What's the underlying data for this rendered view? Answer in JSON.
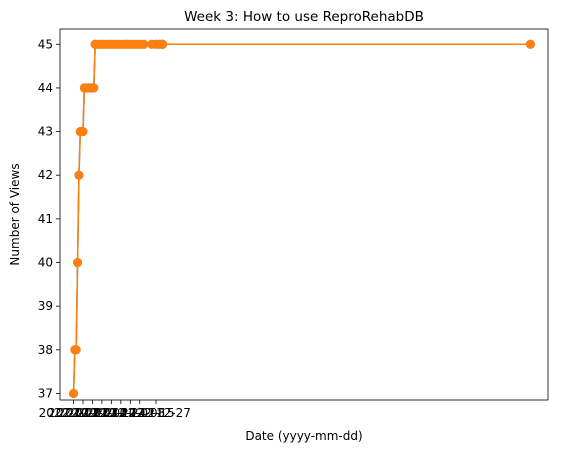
{
  "chart_data": {
    "type": "line",
    "title": "Week 3: How to use ReproRehabDB",
    "xlabel": "Date (yyyy-mm-dd)",
    "ylabel": "Number of Views",
    "ylim": [
      36.85,
      45.35
    ],
    "yticks": [
      37,
      38,
      39,
      40,
      41,
      42,
      43,
      44,
      45
    ],
    "xlim": [
      "2022-10-17",
      "2023-10-13"
    ],
    "xticks": [
      "2022-10-27",
      "2022-11-03",
      "2022-11-10",
      "2022-11-17",
      "2022-11-24",
      "2022-12-01",
      "2022-12-08",
      "2022-12-15",
      "2022-12-27"
    ],
    "xtick_labels": [
      "2022-10-27",
      "2022-11-03",
      "2022-11-10",
      "2022-11-17",
      "2022-11-24",
      "2022-12-01",
      "2022-12-08",
      "2022-12-15",
      "2022-12-27"
    ],
    "grid": false,
    "series": [
      {
        "color": "#1f77b4",
        "x": [
          "2022-10-27",
          "2022-10-28",
          "2022-10-29",
          "2022-10-30",
          "2022-10-31",
          "2022-11-01",
          "2022-11-02",
          "2022-11-03",
          "2022-11-04",
          "2022-11-05",
          "2022-11-06",
          "2022-11-07",
          "2022-11-08",
          "2022-11-09",
          "2022-11-10",
          "2022-11-11",
          "2022-11-12",
          "2022-11-14",
          "2022-11-16",
          "2022-11-18",
          "2022-11-20",
          "2022-11-22",
          "2022-11-24",
          "2022-11-26",
          "2022-11-28",
          "2022-11-30",
          "2022-12-02",
          "2022-12-04",
          "2022-12-06",
          "2022-12-08",
          "2022-12-10",
          "2022-12-12",
          "2022-12-14",
          "2022-12-16",
          "2022-12-18",
          "2022-12-24",
          "2022-12-27",
          "2022-12-29",
          "2022-12-31",
          "2023-01-01",
          "2023-09-30"
        ],
        "values": [
          37,
          38,
          38,
          40,
          42,
          43,
          43,
          43,
          44,
          44,
          44,
          44,
          44,
          44,
          44,
          44,
          45,
          45,
          45,
          45,
          45,
          45,
          45,
          45,
          45,
          45,
          45,
          45,
          45,
          45,
          45,
          45,
          45,
          45,
          45,
          45,
          45,
          45,
          45,
          45,
          45
        ]
      },
      {
        "color": "#ff7f0e",
        "x": [
          "2022-10-27",
          "2022-10-28",
          "2022-10-29",
          "2022-10-30",
          "2022-10-31",
          "2022-11-01",
          "2022-11-02",
          "2022-11-03",
          "2022-11-04",
          "2022-11-05",
          "2022-11-06",
          "2022-11-07",
          "2022-11-08",
          "2022-11-09",
          "2022-11-10",
          "2022-11-11",
          "2022-11-12",
          "2022-11-14",
          "2022-11-16",
          "2022-11-18",
          "2022-11-20",
          "2022-11-22",
          "2022-11-24",
          "2022-11-26",
          "2022-11-28",
          "2022-11-30",
          "2022-12-02",
          "2022-12-04",
          "2022-12-06",
          "2022-12-08",
          "2022-12-10",
          "2022-12-12",
          "2022-12-14",
          "2022-12-16",
          "2022-12-18",
          "2022-12-24",
          "2022-12-27",
          "2022-12-29",
          "2022-12-31",
          "2023-01-01",
          "2023-09-30"
        ],
        "values": [
          37,
          38,
          38,
          40,
          42,
          43,
          43,
          43,
          44,
          44,
          44,
          44,
          44,
          44,
          44,
          44,
          45,
          45,
          45,
          45,
          45,
          45,
          45,
          45,
          45,
          45,
          45,
          45,
          45,
          45,
          45,
          45,
          45,
          45,
          45,
          45,
          45,
          45,
          45,
          45,
          45
        ]
      }
    ]
  }
}
